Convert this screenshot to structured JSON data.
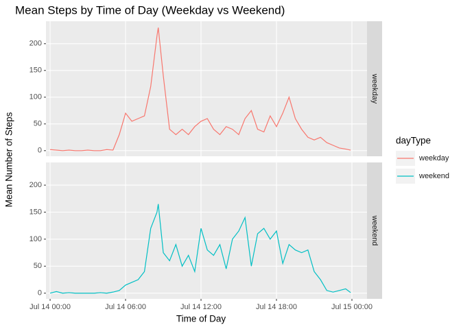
{
  "chart_data": {
    "type": "line",
    "title": "Mean Steps by Time of Day (Weekday vs Weekend)",
    "x_label": "Time of Day",
    "y_label": "Mean Number of Steps",
    "legend_title": "dayType",
    "facets": [
      "weekday",
      "weekend"
    ],
    "x": [
      0,
      0.5,
      1,
      1.5,
      2,
      2.5,
      3,
      3.5,
      4,
      4.5,
      5,
      5.5,
      6,
      6.5,
      7,
      7.5,
      8,
      8.5,
      8.6,
      9,
      9.5,
      10,
      10.5,
      11,
      11.5,
      12,
      12.5,
      13,
      13.5,
      14,
      14.5,
      15,
      15.5,
      16,
      16.5,
      17,
      17.5,
      18,
      18.5,
      19,
      19.5,
      20,
      20.5,
      21,
      21.5,
      22,
      22.5,
      23,
      23.5,
      23.9
    ],
    "xlim": [
      -0.33,
      25.2
    ],
    "xticks": [
      {
        "value": 0,
        "label": "Jul 14 00:00"
      },
      {
        "value": 6,
        "label": "Jul 14 06:00"
      },
      {
        "value": 12,
        "label": "Jul 14 12:00"
      },
      {
        "value": 18,
        "label": "Jul 14 18:00"
      },
      {
        "value": 24,
        "label": "Jul 15 00:00"
      }
    ],
    "ylim": [
      -10.5,
      242
    ],
    "yticks": [
      0,
      50,
      100,
      150,
      200
    ],
    "grid": true,
    "series": [
      {
        "name": "weekday",
        "color": "#F8766D",
        "values": [
          2,
          1,
          0,
          1,
          0,
          0,
          1,
          0,
          0,
          2,
          1,
          30,
          70,
          55,
          60,
          65,
          120,
          215,
          230,
          140,
          40,
          30,
          40,
          30,
          45,
          55,
          60,
          40,
          30,
          45,
          40,
          30,
          60,
          75,
          40,
          35,
          65,
          45,
          70,
          100,
          60,
          40,
          25,
          20,
          25,
          15,
          10,
          5,
          3,
          1
        ]
      },
      {
        "name": "weekend",
        "color": "#00BFC4",
        "values": [
          0,
          3,
          0,
          1,
          0,
          0,
          0,
          0,
          1,
          0,
          2,
          5,
          15,
          20,
          25,
          40,
          120,
          150,
          165,
          75,
          60,
          90,
          50,
          70,
          40,
          120,
          80,
          70,
          90,
          45,
          100,
          115,
          140,
          50,
          110,
          120,
          100,
          115,
          55,
          90,
          80,
          75,
          80,
          40,
          25,
          5,
          2,
          5,
          8,
          1
        ]
      }
    ]
  }
}
